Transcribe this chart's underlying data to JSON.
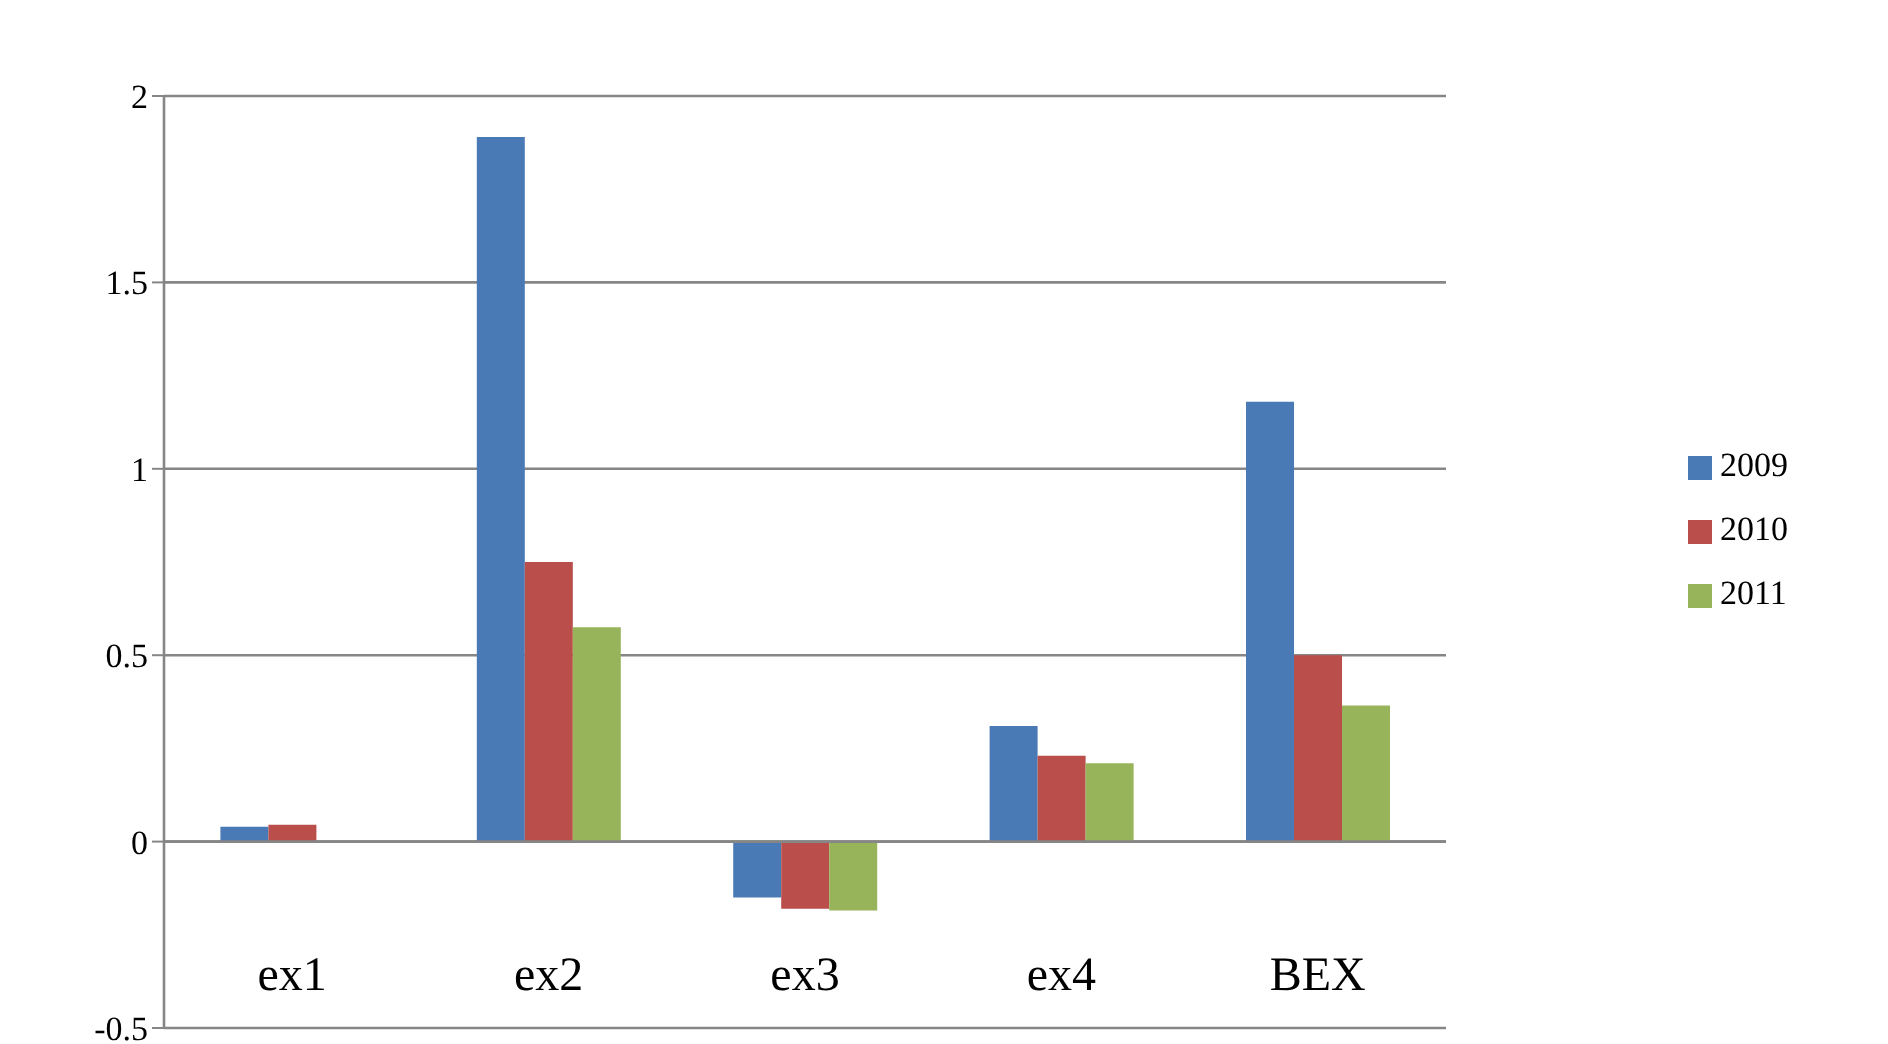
{
  "chart_data": {
    "type": "bar",
    "categories": [
      "ex1",
      "ex2",
      "ex3",
      "ex4",
      "BEX"
    ],
    "series": [
      {
        "name": "2009",
        "color": "#4a7ab5",
        "values": [
          0.04,
          1.89,
          -0.15,
          0.31,
          1.18
        ]
      },
      {
        "name": "2010",
        "color": "#b94e4b",
        "values": [
          0.045,
          0.75,
          -0.18,
          0.23,
          0.5
        ]
      },
      {
        "name": "2011",
        "color": "#97b45a",
        "values": [
          0,
          0.575,
          -0.185,
          0.21,
          0.365
        ]
      }
    ],
    "ylim": [
      -0.5,
      2
    ],
    "yticks": [
      -0.5,
      0,
      0.5,
      1,
      1.5,
      2
    ],
    "grid": "y",
    "legend": "right"
  }
}
